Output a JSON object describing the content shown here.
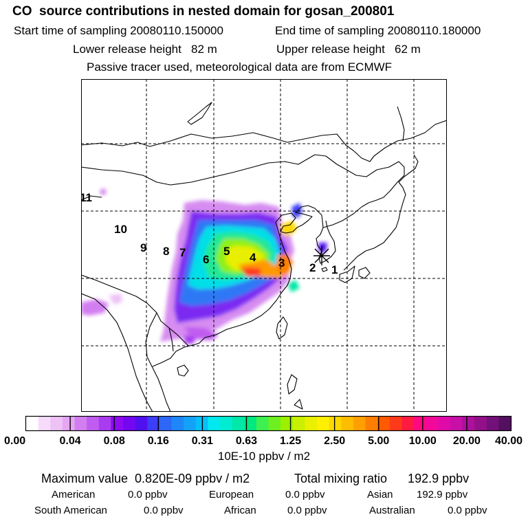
{
  "header": {
    "title": "CO  source contributions in nested domain for gosan_200801",
    "start_label": "Start time of sampling 20080110.150000",
    "end_label": "End time of sampling 20080110.180000",
    "lower_label": "Lower release height   82 m",
    "upper_label": "Upper release height   62 m",
    "tracer_label": "Passive tracer used, meteorological data are from ECMWF"
  },
  "map": {
    "trajectory_labels": [
      "1",
      "2",
      "3",
      "4",
      "5",
      "6",
      "7",
      "8",
      "9",
      "10",
      "11"
    ],
    "receptor_marker": "star-marker"
  },
  "colorbar": {
    "tick_labels": [
      "0.00",
      "0.04",
      "0.08",
      "0.16",
      "0.31",
      "0.63",
      "1.25",
      "2.50",
      "5.00",
      "10.00",
      "20.00",
      "40.00"
    ],
    "colors": [
      "#ffffff",
      "#f6dcfa",
      "#eec1f7",
      "#e7a6f4",
      "#d27ef0",
      "#c05df0",
      "#aa3cf0",
      "#8d0af2",
      "#7308f0",
      "#5010f0",
      "#3c3ef8",
      "#2e67f8",
      "#1f86f8",
      "#14a2f8",
      "#05c0f8",
      "#00e8f0",
      "#00ecd2",
      "#00e8a8",
      "#00e880",
      "#3ef050",
      "#6ef020",
      "#9cf000",
      "#c8f000",
      "#eaf000",
      "#fff000",
      "#ffd800",
      "#ffbd00",
      "#ffa000",
      "#ff7d00",
      "#ff5a00",
      "#ff3a1a",
      "#ff1a40",
      "#ff0880",
      "#f2089a",
      "#e00aa8",
      "#c810a8",
      "#ad109a",
      "#92108a",
      "#74107a",
      "#541060"
    ],
    "unit": "10E-10 ppbv / m2"
  },
  "summary": {
    "maximum": "Maximum value  0.820E-09 ppbv / m2",
    "total": "Total mixing ratio      192.9 ppbv",
    "american_label": "American",
    "american_value": "0.0 ppbv",
    "european_label": "European",
    "european_value": "0.0 ppbv",
    "asian_label": "Asian",
    "asian_value": "192.9 ppbv",
    "south_american_label": "South American",
    "south_american_value": "0.0 ppbv",
    "african_label": "African",
    "african_value": "0.0 ppbv",
    "australian_label": "Australian",
    "australian_value": "0.0 ppbv"
  }
}
